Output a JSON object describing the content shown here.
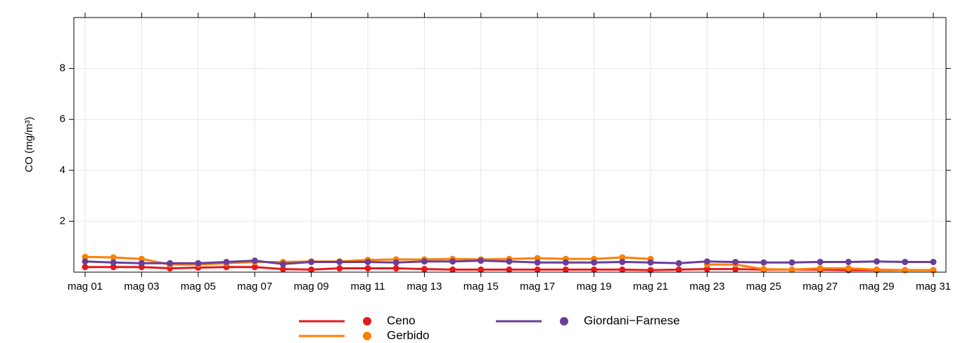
{
  "chart_data": {
    "type": "line",
    "y_label": "CO (mg/m³)",
    "categories": [
      "mag 01",
      null,
      "mag 03",
      null,
      "mag 05",
      null,
      "mag 07",
      null,
      "mag 09",
      null,
      "mag 11",
      null,
      "mag 13",
      null,
      "mag 15",
      null,
      "mag 17",
      null,
      "mag 19",
      null,
      "mag 21",
      null,
      "mag 23",
      null,
      "mag 25",
      null,
      "mag 27",
      null,
      "mag 29",
      null,
      "mag 31"
    ],
    "series": [
      {
        "name": "Ceno",
        "color": "#e41a1c",
        "values": [
          0.2,
          0.2,
          0.2,
          0.15,
          0.18,
          0.2,
          0.2,
          0.12,
          0.1,
          0.15,
          0.15,
          0.15,
          0.12,
          0.1,
          0.1,
          0.1,
          0.1,
          0.1,
          0.1,
          0.1,
          0.08,
          0.1,
          0.12,
          0.12,
          0.1,
          0.1,
          0.1,
          0.08,
          0.08,
          0.08,
          0.08
        ]
      },
      {
        "name": "Gerbido",
        "color": "#ff7f00",
        "values": [
          0.6,
          0.58,
          0.52,
          0.3,
          0.3,
          0.35,
          0.4,
          0.4,
          0.42,
          0.42,
          0.48,
          0.5,
          0.5,
          0.52,
          0.5,
          0.52,
          0.55,
          0.52,
          0.52,
          0.58,
          0.52,
          null,
          0.3,
          0.3,
          0.12,
          0.1,
          0.15,
          0.15,
          0.1,
          0.08,
          0.08
        ]
      },
      {
        "name": "Giordani−Farnese",
        "color": "#6a3d9a",
        "values": [
          0.42,
          0.38,
          0.35,
          0.35,
          0.35,
          0.4,
          0.45,
          0.32,
          0.4,
          0.4,
          0.4,
          0.38,
          0.42,
          0.42,
          0.45,
          0.42,
          0.38,
          0.38,
          0.38,
          0.4,
          0.38,
          0.35,
          0.42,
          0.4,
          0.38,
          0.38,
          0.4,
          0.4,
          0.42,
          0.4,
          0.4
        ]
      }
    ],
    "ylim": [
      0,
      10
    ],
    "yticks": [
      2,
      4,
      6,
      8
    ],
    "grid": true
  }
}
